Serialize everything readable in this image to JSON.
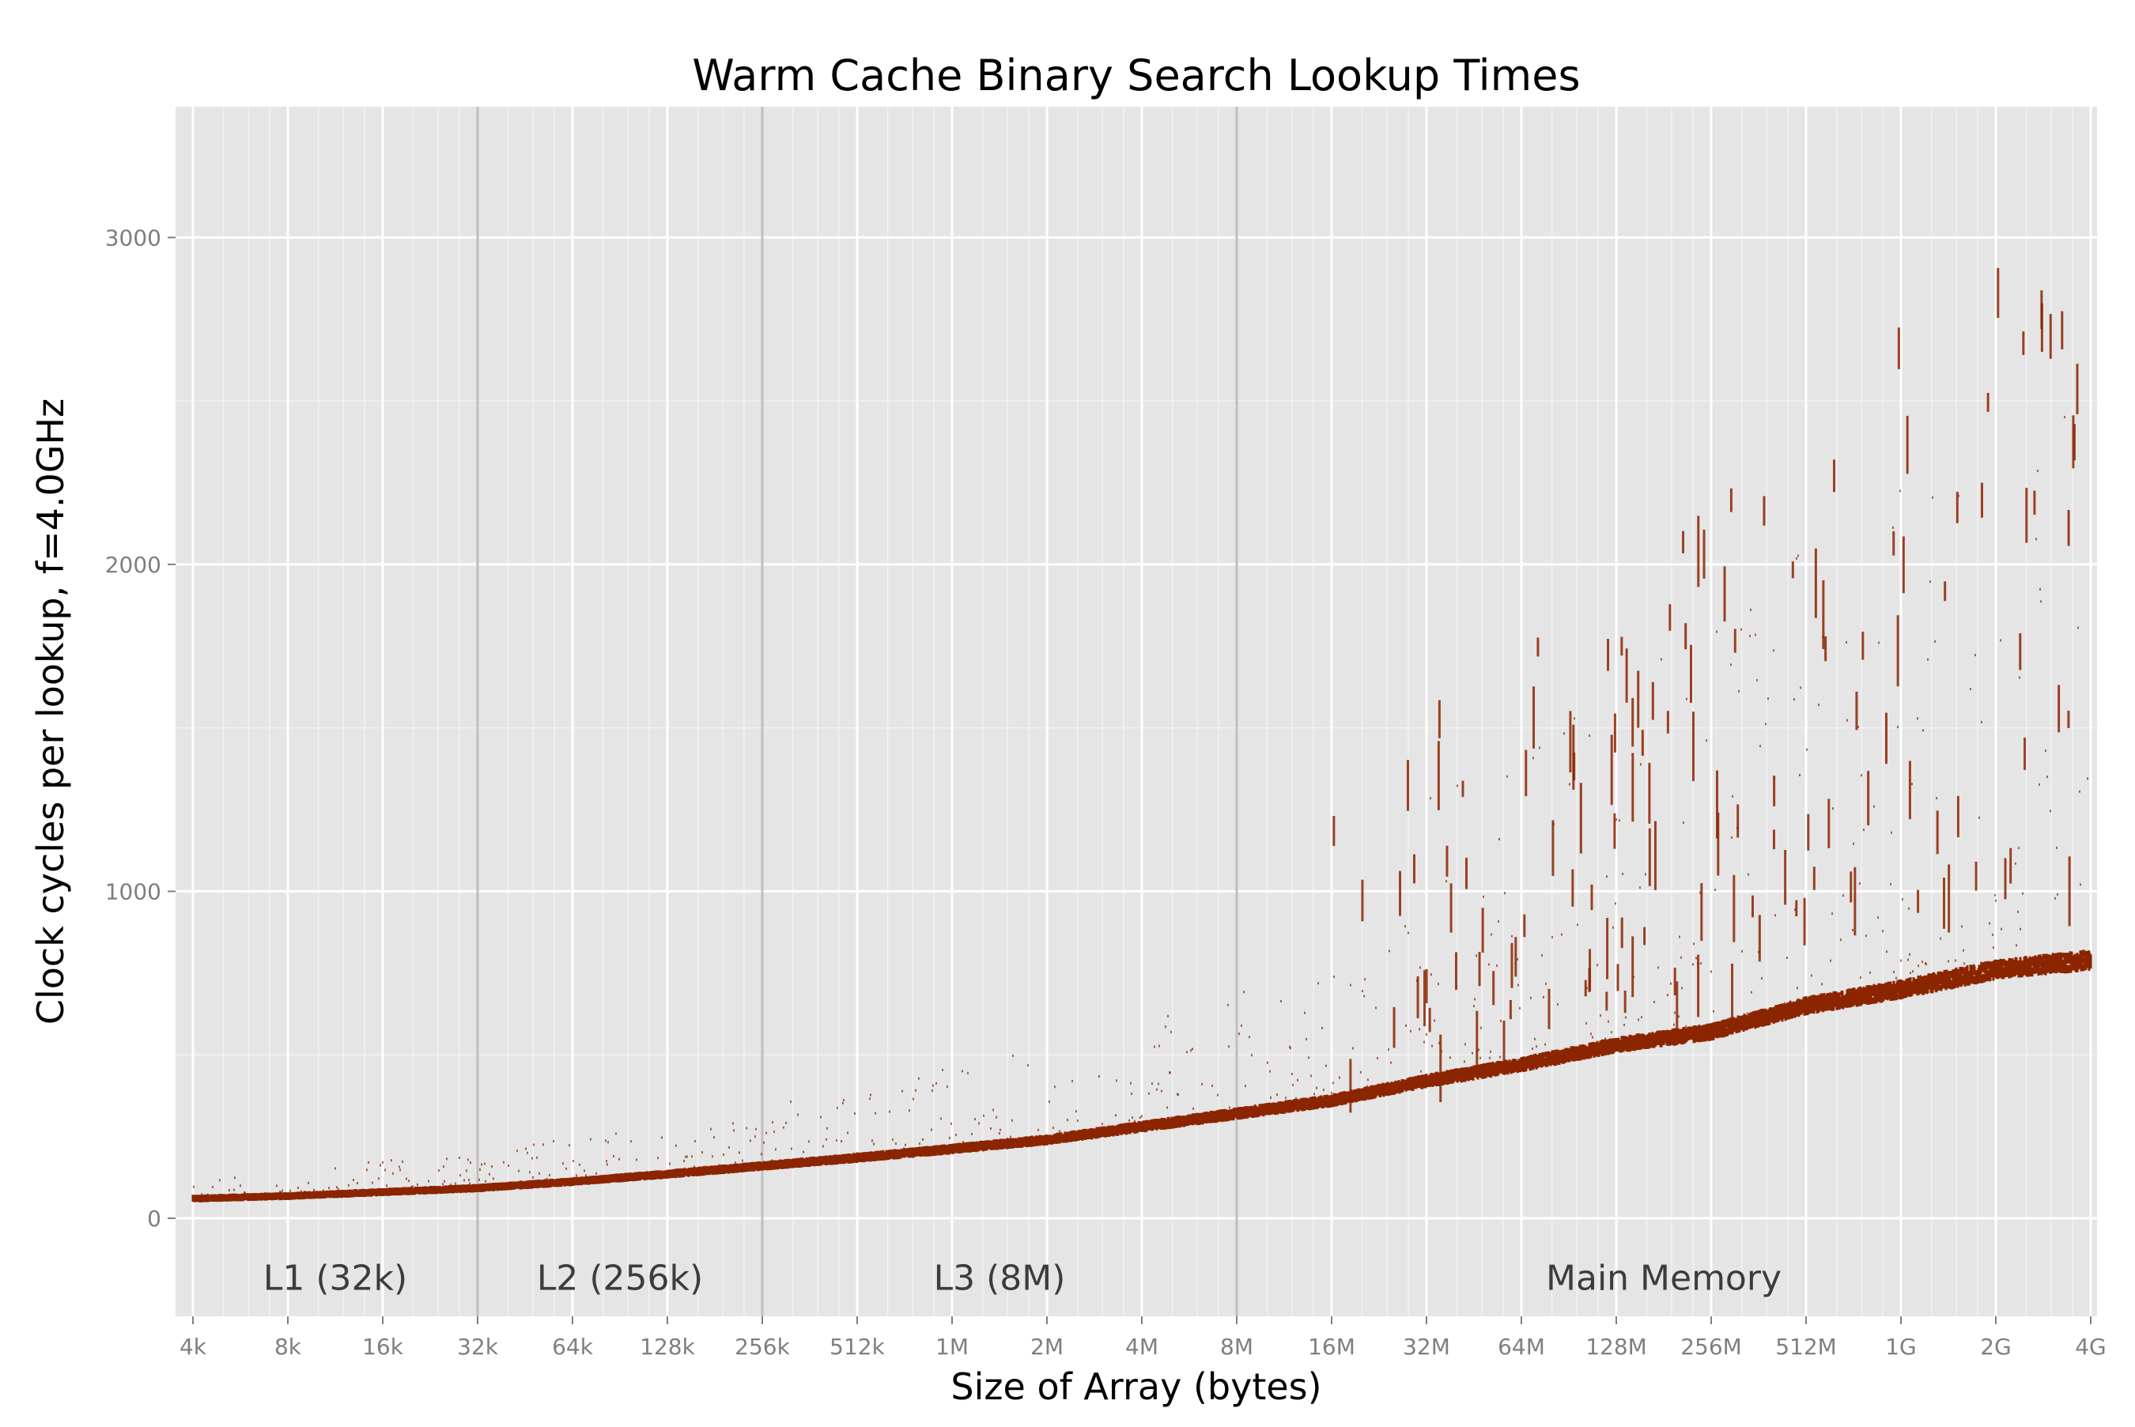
{
  "chart_data": {
    "type": "scatter",
    "title": "Warm Cache Binary Search Lookup Times",
    "xlabel": "Size of Array (bytes)",
    "ylabel": "Clock cycles per lookup, f=4.0GHz",
    "x_scale": "log2",
    "x_ticks": [
      "4k",
      "8k",
      "16k",
      "32k",
      "64k",
      "128k",
      "256k",
      "512k",
      "1M",
      "2M",
      "4M",
      "8M",
      "16M",
      "32M",
      "64M",
      "128M",
      "256M",
      "512M",
      "1G",
      "2G",
      "4G"
    ],
    "y_ticks": [
      0,
      1000,
      2000,
      3000
    ],
    "ylim": [
      -300,
      3400
    ],
    "grid": true,
    "point_color": "#8b2500",
    "boundary_color": "#bfbfbf",
    "cache_boundaries": [
      "32k",
      "256k",
      "8M"
    ],
    "regions": [
      {
        "label": "L1 (32k)",
        "from": "4k",
        "to": "32k"
      },
      {
        "label": "L2 (256k)",
        "from": "32k",
        "to": "256k"
      },
      {
        "label": "L3 (8M)",
        "from": "256k",
        "to": "8M"
      },
      {
        "label": "Main Memory",
        "from": "8M",
        "to": "4G"
      }
    ],
    "median_curve": [
      {
        "x": "4k",
        "y": 60
      },
      {
        "x": "8k",
        "y": 68
      },
      {
        "x": "16k",
        "y": 80
      },
      {
        "x": "32k",
        "y": 92
      },
      {
        "x": "64k",
        "y": 112
      },
      {
        "x": "128k",
        "y": 135
      },
      {
        "x": "256k",
        "y": 160
      },
      {
        "x": "512k",
        "y": 185
      },
      {
        "x": "1M",
        "y": 212
      },
      {
        "x": "2M",
        "y": 240
      },
      {
        "x": "4M",
        "y": 280
      },
      {
        "x": "8M",
        "y": 320
      },
      {
        "x": "16M",
        "y": 360
      },
      {
        "x": "32M",
        "y": 420
      },
      {
        "x": "64M",
        "y": 470
      },
      {
        "x": "128M",
        "y": 530
      },
      {
        "x": "256M",
        "y": 570
      },
      {
        "x": "512M",
        "y": 650
      },
      {
        "x": "1G",
        "y": 700
      },
      {
        "x": "2G",
        "y": 760
      },
      {
        "x": "4G",
        "y": 790
      }
    ]
  }
}
